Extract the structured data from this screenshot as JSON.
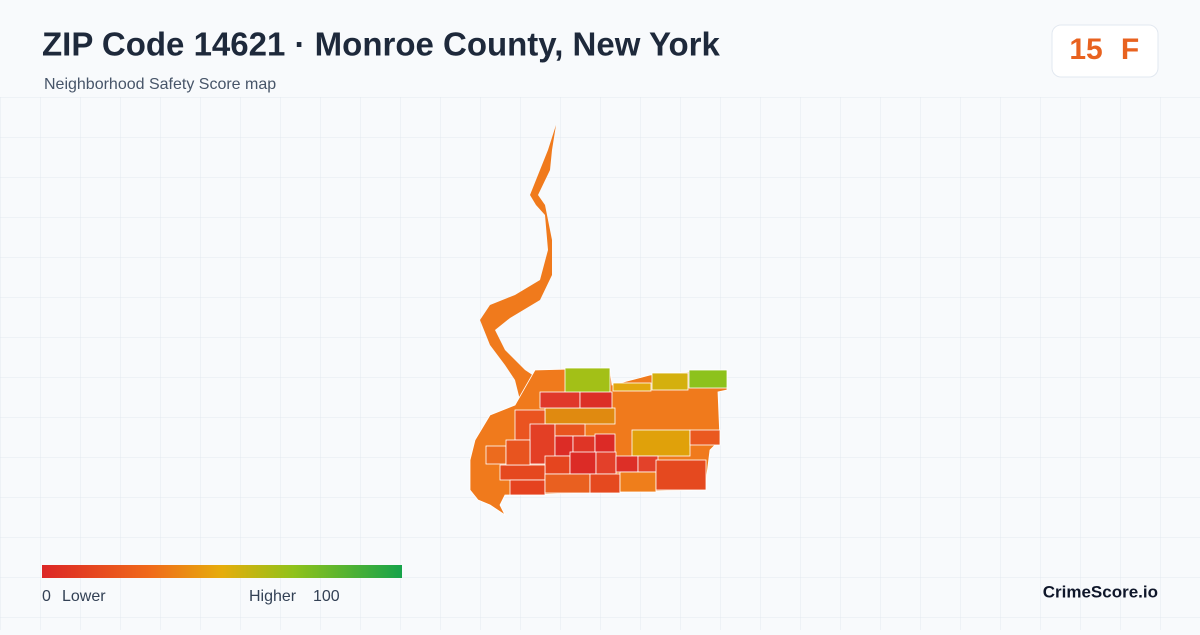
{
  "header": {
    "title": "ZIP Code 14621 · Monroe County, New York",
    "subtitle": "Neighborhood Safety Score map"
  },
  "badge": {
    "score": 15,
    "grade": "F"
  },
  "legend": {
    "min": 0,
    "min_label": "Lower",
    "max_label": "Higher",
    "max": 100
  },
  "footer": {
    "brand": "CrimeScore.io"
  }
}
